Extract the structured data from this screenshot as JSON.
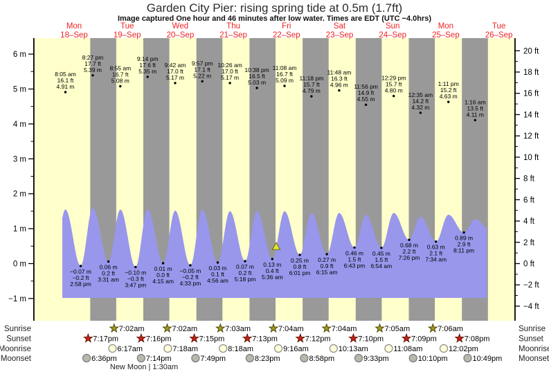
{
  "title": "Garden City Pier: rising  spring tide at 0.5m (1.7ft)",
  "subtitle": "Image captured One hour and 46 minutes after low water. Times are EDT (UTC −4.0hrs)",
  "days": [
    {
      "dow": "Mon",
      "date": "18–Sep"
    },
    {
      "dow": "Tue",
      "date": "19–Sep"
    },
    {
      "dow": "Wed",
      "date": "20–Sep"
    },
    {
      "dow": "Thu",
      "date": "21–Sep"
    },
    {
      "dow": "Fri",
      "date": "22–Sep"
    },
    {
      "dow": "Sat",
      "date": "23–Sep"
    },
    {
      "dow": "Sun",
      "date": "24–Sep"
    },
    {
      "dow": "Mon",
      "date": "25–Sep"
    },
    {
      "dow": "Tue",
      "date": "26–Sep"
    }
  ],
  "chart_data": {
    "type": "area",
    "title": "Garden City Pier: rising  spring tide at 0.5m (1.7ft)",
    "y_axis_left": {
      "unit": "m",
      "min": -1,
      "max": 6,
      "ticks": [
        {
          "v": 6,
          "label": "6 m"
        },
        {
          "v": 5,
          "label": "5 m"
        },
        {
          "v": 4,
          "label": "4 m"
        },
        {
          "v": 3,
          "label": "3 m"
        },
        {
          "v": 2,
          "label": "2 m"
        },
        {
          "v": 1,
          "label": "1 m"
        },
        {
          "v": 0,
          "label": "0 m"
        },
        {
          "v": -1,
          "label": "−1 m"
        }
      ]
    },
    "y_axis_right": {
      "unit": "ft",
      "min": -4,
      "max": 20,
      "ticks": [
        {
          "v": 20,
          "label": "20 ft"
        },
        {
          "v": 18,
          "label": "18 ft"
        },
        {
          "v": 16,
          "label": "16 ft"
        },
        {
          "v": 14,
          "label": "14 ft"
        },
        {
          "v": 12,
          "label": "12 ft"
        },
        {
          "v": 10,
          "label": "10 ft"
        },
        {
          "v": 8,
          "label": "8 ft"
        },
        {
          "v": 6,
          "label": "6 ft"
        },
        {
          "v": 4,
          "label": "4 ft"
        },
        {
          "v": 2,
          "label": "2 ft"
        },
        {
          "v": 0,
          "label": "0 ft"
        },
        {
          "v": -2,
          "label": "−2 ft"
        },
        {
          "v": -4,
          "label": "−4 ft"
        }
      ]
    },
    "high_tides": [
      {
        "day": 0,
        "time": "8:05 am",
        "ft": 16.1,
        "m": 4.91,
        "ft_label": "16.1 ft",
        "m_label": "4.91 m",
        "crest_drawn_m": 1.55
      },
      {
        "day": 0,
        "time": "8:27 pm",
        "ft": 17.7,
        "m": 5.39,
        "ft_label": "17.7 ft",
        "m_label": "5.39 m",
        "crest_drawn_m": 1.6
      },
      {
        "day": 1,
        "time": "8:55 am",
        "ft": 16.7,
        "m": 5.08,
        "ft_label": "16.7 ft",
        "m_label": "5.08 m",
        "crest_drawn_m": 1.55
      },
      {
        "day": 1,
        "time": "9:14 pm",
        "ft": 17.6,
        "m": 5.35,
        "ft_label": "17.6 ft",
        "m_label": "5.35 m",
        "crest_drawn_m": 1.55
      },
      {
        "day": 2,
        "time": "9:42 am",
        "ft": 17.0,
        "m": 5.17,
        "ft_label": "17.0 ft",
        "m_label": "5.17 m",
        "crest_drawn_m": 1.52
      },
      {
        "day": 2,
        "time": "9:57 pm",
        "ft": 17.1,
        "m": 5.22,
        "ft_label": "17.1 ft",
        "m_label": "5.22 m",
        "crest_drawn_m": 1.55
      },
      {
        "day": 3,
        "time": "10:26 am",
        "ft": 17.0,
        "m": 5.17,
        "ft_label": "17.0 ft",
        "m_label": "5.17 m",
        "crest_drawn_m": 1.5
      },
      {
        "day": 3,
        "time": "10:38 pm",
        "ft": 16.5,
        "m": 5.03,
        "ft_label": "16.5 ft",
        "m_label": "5.03 m",
        "crest_drawn_m": 1.5
      },
      {
        "day": 4,
        "time": "11:08 am",
        "ft": 16.7,
        "m": 5.09,
        "ft_label": "16.7 ft",
        "m_label": "5.09 m",
        "crest_drawn_m": 1.5
      },
      {
        "day": 4,
        "time": "11:18 pm",
        "ft": 15.7,
        "m": 4.79,
        "ft_label": "15.7 ft",
        "m_label": "4.79 m",
        "crest_drawn_m": 1.45
      },
      {
        "day": 5,
        "time": "11:48 am",
        "ft": 16.3,
        "m": 4.96,
        "ft_label": "16.3 ft",
        "m_label": "4.96 m",
        "crest_drawn_m": 1.45
      },
      {
        "day": 5,
        "time": "11:56 pm",
        "ft": 14.9,
        "m": 4.55,
        "ft_label": "14.9 ft",
        "m_label": "4.55 m",
        "crest_drawn_m": 1.4
      },
      {
        "day": 6,
        "time": "12:29 pm",
        "ft": 15.7,
        "m": 4.8,
        "ft_label": "15.7 ft",
        "m_label": "4.80 m",
        "crest_drawn_m": 1.45
      },
      {
        "day": 7,
        "time": "12:35 am",
        "ft": 14.2,
        "m": 4.32,
        "ft_label": "14.2 ft",
        "m_label": "4.32 m",
        "crest_drawn_m": 1.35
      },
      {
        "day": 7,
        "time": "1:11 pm",
        "ft": 15.2,
        "m": 4.63,
        "ft_label": "15.2 ft",
        "m_label": "4.63 m",
        "crest_drawn_m": 1.4
      },
      {
        "day": 8,
        "time": "1:16 am",
        "ft": 13.5,
        "m": 4.11,
        "ft_label": "13.5 ft",
        "m_label": "4.11 m",
        "crest_drawn_m": 1.27
      }
    ],
    "low_tides": [
      {
        "day": 0,
        "time": "2:58 pm",
        "ft": -0.2,
        "m": -0.07,
        "m_label": "−0.07 m",
        "ft_label": "−0.2 ft"
      },
      {
        "day": 1,
        "time": "3:31 am",
        "ft": 0.2,
        "m": 0.06,
        "m_label": "0.06 m",
        "ft_label": "0.2 ft"
      },
      {
        "day": 1,
        "time": "3:47 pm",
        "ft": -0.3,
        "m": -0.1,
        "m_label": "−0.10 m",
        "ft_label": "−0.3 ft"
      },
      {
        "day": 2,
        "time": "4:15 am",
        "ft": 0.0,
        "m": 0.01,
        "m_label": "0.01 m",
        "ft_label": "0.0 ft"
      },
      {
        "day": 2,
        "time": "4:33 pm",
        "ft": -0.2,
        "m": -0.05,
        "m_label": "−0.05 m",
        "ft_label": "−0.2 ft"
      },
      {
        "day": 3,
        "time": "4:56 am",
        "ft": 0.1,
        "m": 0.03,
        "m_label": "0.03 m",
        "ft_label": "0.1 ft"
      },
      {
        "day": 3,
        "time": "5:18 pm",
        "ft": 0.2,
        "m": 0.07,
        "m_label": "0.07 m",
        "ft_label": "0.2 ft"
      },
      {
        "day": 4,
        "time": "5:36 am",
        "ft": 0.4,
        "m": 0.13,
        "m_label": "0.13 m",
        "ft_label": "0.4 ft"
      },
      {
        "day": 4,
        "time": "6:01 pm",
        "ft": 0.8,
        "m": 0.25,
        "m_label": "0.25 m",
        "ft_label": "0.8 ft"
      },
      {
        "day": 5,
        "time": "6:15 am",
        "ft": 0.9,
        "m": 0.27,
        "m_label": "0.27 m",
        "ft_label": "0.9 ft"
      },
      {
        "day": 5,
        "time": "6:43 pm",
        "ft": 1.5,
        "m": 0.46,
        "m_label": "0.46 m",
        "ft_label": "1.5 ft"
      },
      {
        "day": 6,
        "time": "6:54 am",
        "ft": 1.5,
        "m": 0.45,
        "m_label": "0.45 m",
        "ft_label": "1.5 ft"
      },
      {
        "day": 6,
        "time": "7:26 pm",
        "ft": 2.2,
        "m": 0.68,
        "m_label": "0.68 m",
        "ft_label": "2.2 ft"
      },
      {
        "day": 7,
        "time": "7:34 am",
        "ft": 2.1,
        "m": 0.63,
        "m_label": "0.63 m",
        "ft_label": "2.1 ft"
      },
      {
        "day": 7,
        "time": "8:11 pm",
        "ft": 2.9,
        "m": 0.89,
        "m_label": "0.89 m",
        "ft_label": "2.9 ft"
      }
    ],
    "current_marker": {
      "day": 4,
      "time_hours": 7.37,
      "height_m": 0.5
    }
  },
  "almanac": {
    "rows": [
      {
        "name": "Sunrise",
        "icon": "sunrise-star-icon",
        "entries": [
          {
            "day": 1,
            "time": "7:02am"
          },
          {
            "day": 2,
            "time": "7:02am"
          },
          {
            "day": 3,
            "time": "7:03am"
          },
          {
            "day": 4,
            "time": "7:04am"
          },
          {
            "day": 5,
            "time": "7:04am"
          },
          {
            "day": 6,
            "time": "7:05am"
          },
          {
            "day": 7,
            "time": "7:06am"
          }
        ]
      },
      {
        "name": "Sunset",
        "icon": "sunset-star-icon",
        "entries": [
          {
            "day": 0,
            "time": "7:17pm"
          },
          {
            "day": 1,
            "time": "7:16pm"
          },
          {
            "day": 2,
            "time": "7:15pm"
          },
          {
            "day": 3,
            "time": "7:13pm"
          },
          {
            "day": 4,
            "time": "7:12pm"
          },
          {
            "day": 5,
            "time": "7:10pm"
          },
          {
            "day": 6,
            "time": "7:09pm"
          },
          {
            "day": 7,
            "time": "7:08pm"
          }
        ]
      },
      {
        "name": "Moonrise",
        "icon": "moonrise-circle-icon",
        "entries": [
          {
            "day": 1,
            "time": "6:17am"
          },
          {
            "day": 2,
            "time": "7:18am"
          },
          {
            "day": 3,
            "time": "8:18am"
          },
          {
            "day": 4,
            "time": "9:16am"
          },
          {
            "day": 5,
            "time": "10:13am"
          },
          {
            "day": 6,
            "time": "11:08am"
          },
          {
            "day": 7,
            "time": "12:02pm"
          }
        ]
      },
      {
        "name": "Moonset",
        "icon": "moonset-circle-icon",
        "entries": [
          {
            "day": 0,
            "time": "6:36pm"
          },
          {
            "day": 1,
            "time": "7:14pm"
          },
          {
            "day": 2,
            "time": "7:49pm"
          },
          {
            "day": 3,
            "time": "8:23pm"
          },
          {
            "day": 4,
            "time": "8:58pm"
          },
          {
            "day": 5,
            "time": "9:33pm"
          },
          {
            "day": 6,
            "time": "10:10pm"
          },
          {
            "day": 7,
            "time": "10:49pm"
          }
        ]
      }
    ],
    "footnote": "New Moon | 1:30am"
  },
  "colors": {
    "plot_day_bg": "#ffffcc",
    "night_band": "#999999",
    "tide_fill": "#9897ec",
    "day_label_red": "#ee2222",
    "sunrise_star": "#a59722",
    "sunset_star": "#cc2211",
    "moonrise_circle": "#ffffd9",
    "moonset_circle": "#b8b8ac",
    "marker_triangle": "#e6e33f",
    "text": "#000000"
  }
}
